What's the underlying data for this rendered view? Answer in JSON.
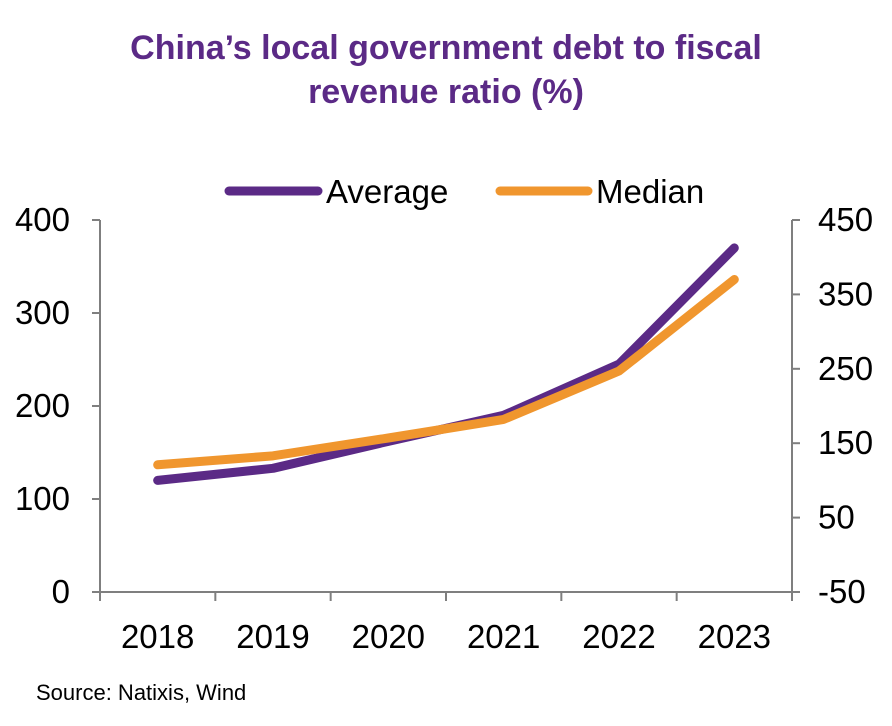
{
  "chart_data": {
    "type": "line",
    "title_line1": "China’s local government debt to fiscal",
    "title_line2": "revenue ratio (%)",
    "categories": [
      "2018",
      "2019",
      "2020",
      "2021",
      "2022",
      "2023"
    ],
    "series": [
      {
        "name": "Average",
        "axis": "left",
        "color": "#5b2a86",
        "values": [
          120,
          133,
          162,
          190,
          245,
          370
        ]
      },
      {
        "name": "Median",
        "axis": "right",
        "color": "#f0962e",
        "values": [
          121,
          133,
          157,
          182,
          247,
          370
        ]
      }
    ],
    "y_left": {
      "min": 0,
      "max": 400,
      "ticks": [
        0,
        100,
        200,
        300,
        400
      ]
    },
    "y_right": {
      "min": -50,
      "max": 450,
      "ticks": [
        -50,
        50,
        150,
        250,
        350,
        450
      ]
    },
    "legend_position": "top",
    "grid": false
  },
  "source": "Source: Natixis, Wind"
}
